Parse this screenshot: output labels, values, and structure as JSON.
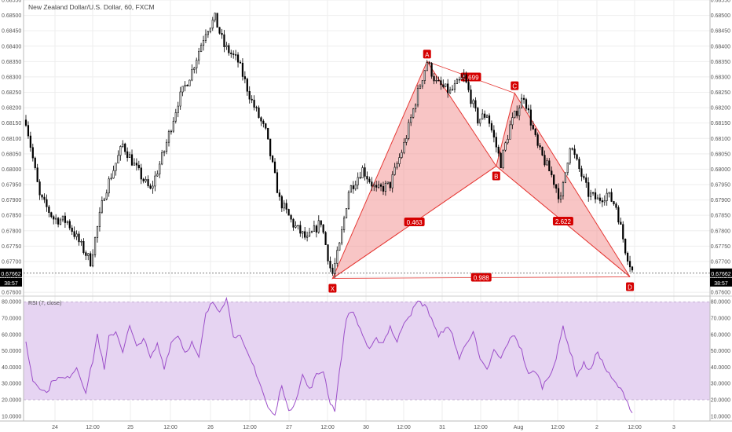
{
  "chart_title": "New Zealand Dollar/U.S. Dollar, 60, FXCM",
  "colors": {
    "up": "#ffffff",
    "down": "#000000",
    "wick": "#000000",
    "pattern_stroke": "#e53935",
    "pattern_fill": "#f28b8b",
    "label_bg": "#d50000",
    "rsi_line": "#9c4fc9",
    "rsi_band": "#e6d4f2",
    "grid": "#eeeeee"
  },
  "chart_data": {
    "type": "candlestick",
    "symbol": "New Zealand Dollar/U.S. Dollar",
    "interval": "60",
    "source": "FXCM",
    "x_labels": [
      "24",
      "12:00",
      "25",
      "12:00",
      "26",
      "12:00",
      "27",
      "12:00",
      "30",
      "12:00",
      "31",
      "12:00",
      "Aug",
      "12:00",
      "2",
      "12:00",
      "3"
    ],
    "price_axis": {
      "ticks": [
        "0.68550",
        "0.68500",
        "0.68450",
        "0.68400",
        "0.68350",
        "0.68300",
        "0.68250",
        "0.68200",
        "0.68150",
        "0.68100",
        "0.68050",
        "0.68000",
        "0.67950",
        "0.67900",
        "0.67850",
        "0.67800",
        "0.67750",
        "0.67700",
        "0.67650",
        "0.67600"
      ],
      "min": 0.6759,
      "max": 0.6855
    },
    "last_price": "0.67662",
    "countdown": "38:57",
    "price_waypoints": [
      [
        0,
        0.6816
      ],
      [
        6,
        0.6791
      ],
      [
        12,
        0.6784
      ],
      [
        18,
        0.6783
      ],
      [
        24,
        0.6775
      ],
      [
        28,
        0.677
      ],
      [
        34,
        0.6792
      ],
      [
        42,
        0.6808
      ],
      [
        48,
        0.68
      ],
      [
        54,
        0.6793
      ],
      [
        60,
        0.6806
      ],
      [
        66,
        0.6822
      ],
      [
        72,
        0.6832
      ],
      [
        78,
        0.6845
      ],
      [
        82,
        0.6849
      ],
      [
        86,
        0.684
      ],
      [
        92,
        0.6835
      ],
      [
        98,
        0.6822
      ],
      [
        104,
        0.6812
      ],
      [
        110,
        0.679
      ],
      [
        116,
        0.6782
      ],
      [
        122,
        0.6777
      ],
      [
        128,
        0.6783
      ],
      [
        132,
        0.6768
      ],
      [
        133,
        0.6766
      ],
      [
        136,
        0.6775
      ],
      [
        140,
        0.6793
      ],
      [
        146,
        0.68
      ],
      [
        152,
        0.6793
      ],
      [
        158,
        0.6795
      ],
      [
        164,
        0.6808
      ],
      [
        170,
        0.6825
      ],
      [
        174,
        0.6835
      ],
      [
        178,
        0.6828
      ],
      [
        184,
        0.6825
      ],
      [
        190,
        0.683
      ],
      [
        196,
        0.6816
      ],
      [
        200,
        0.6818
      ],
      [
        206,
        0.6802
      ],
      [
        210,
        0.6814
      ],
      [
        216,
        0.6824
      ],
      [
        222,
        0.6807
      ],
      [
        228,
        0.6798
      ],
      [
        232,
        0.679
      ],
      [
        236,
        0.6808
      ],
      [
        240,
        0.68
      ],
      [
        244,
        0.6792
      ],
      [
        248,
        0.679
      ],
      [
        252,
        0.6792
      ],
      [
        256,
        0.6788
      ],
      [
        260,
        0.6774
      ],
      [
        263,
        0.6767
      ]
    ],
    "harmonic_pattern": {
      "points": [
        {
          "label": "X",
          "bar": 133,
          "price": 0.67645
        },
        {
          "label": "A",
          "bar": 174,
          "price": 0.6835
        },
        {
          "label": "B",
          "bar": 204,
          "price": 0.6801
        },
        {
          "label": "C",
          "bar": 212,
          "price": 0.68247
        },
        {
          "label": "D",
          "bar": 262,
          "price": 0.6765
        }
      ],
      "ratios": [
        {
          "value": "0.463",
          "from": "X",
          "to": "B"
        },
        {
          "value": "0.699",
          "from": "A",
          "to": "C"
        },
        {
          "value": "2.622",
          "from": "B",
          "to": "D"
        },
        {
          "value": "0.988",
          "from": "X",
          "to": "D"
        }
      ]
    },
    "rsi": {
      "label": "RSI (7, close)",
      "ticks": [
        "80.0000",
        "70.0000",
        "60.0000",
        "50.0000",
        "40.0000",
        "30.0000",
        "20.0000",
        "10.0000"
      ],
      "min": 7,
      "max": 83,
      "upper_band": 80,
      "lower_band": 20,
      "waypoints": [
        [
          0,
          55
        ],
        [
          3,
          32
        ],
        [
          6,
          28
        ],
        [
          9,
          24
        ],
        [
          12,
          33
        ],
        [
          18,
          33
        ],
        [
          22,
          40
        ],
        [
          26,
          25
        ],
        [
          29,
          44
        ],
        [
          31,
          60
        ],
        [
          34,
          38
        ],
        [
          36,
          58
        ],
        [
          39,
          62
        ],
        [
          42,
          50
        ],
        [
          45,
          65
        ],
        [
          48,
          52
        ],
        [
          51,
          58
        ],
        [
          54,
          45
        ],
        [
          57,
          54
        ],
        [
          60,
          40
        ],
        [
          63,
          55
        ],
        [
          66,
          60
        ],
        [
          69,
          49
        ],
        [
          72,
          55
        ],
        [
          75,
          45
        ],
        [
          78,
          72
        ],
        [
          81,
          80
        ],
        [
          84,
          75
        ],
        [
          87,
          82
        ],
        [
          90,
          60
        ],
        [
          93,
          58
        ],
        [
          96,
          48
        ],
        [
          99,
          40
        ],
        [
          102,
          28
        ],
        [
          105,
          15
        ],
        [
          108,
          10
        ],
        [
          111,
          30
        ],
        [
          114,
          12
        ],
        [
          117,
          20
        ],
        [
          120,
          35
        ],
        [
          123,
          26
        ],
        [
          126,
          35
        ],
        [
          129,
          38
        ],
        [
          132,
          18
        ],
        [
          134,
          14
        ],
        [
          137,
          48
        ],
        [
          139,
          70
        ],
        [
          141,
          75
        ],
        [
          143,
          70
        ],
        [
          146,
          60
        ],
        [
          149,
          50
        ],
        [
          152,
          57
        ],
        [
          155,
          55
        ],
        [
          158,
          65
        ],
        [
          161,
          55
        ],
        [
          164,
          68
        ],
        [
          167,
          73
        ],
        [
          170,
          80
        ],
        [
          173,
          78
        ],
        [
          176,
          70
        ],
        [
          179,
          58
        ],
        [
          182,
          65
        ],
        [
          185,
          60
        ],
        [
          188,
          45
        ],
        [
          191,
          55
        ],
        [
          194,
          62
        ],
        [
          197,
          44
        ],
        [
          200,
          38
        ],
        [
          203,
          50
        ],
        [
          206,
          45
        ],
        [
          209,
          55
        ],
        [
          212,
          60
        ],
        [
          215,
          50
        ],
        [
          218,
          35
        ],
        [
          221,
          38
        ],
        [
          224,
          28
        ],
        [
          227,
          35
        ],
        [
          230,
          45
        ],
        [
          233,
          65
        ],
        [
          236,
          50
        ],
        [
          239,
          35
        ],
        [
          242,
          42
        ],
        [
          245,
          38
        ],
        [
          248,
          50
        ],
        [
          251,
          40
        ],
        [
          254,
          33
        ],
        [
          257,
          28
        ],
        [
          260,
          22
        ],
        [
          263,
          12
        ]
      ]
    }
  }
}
